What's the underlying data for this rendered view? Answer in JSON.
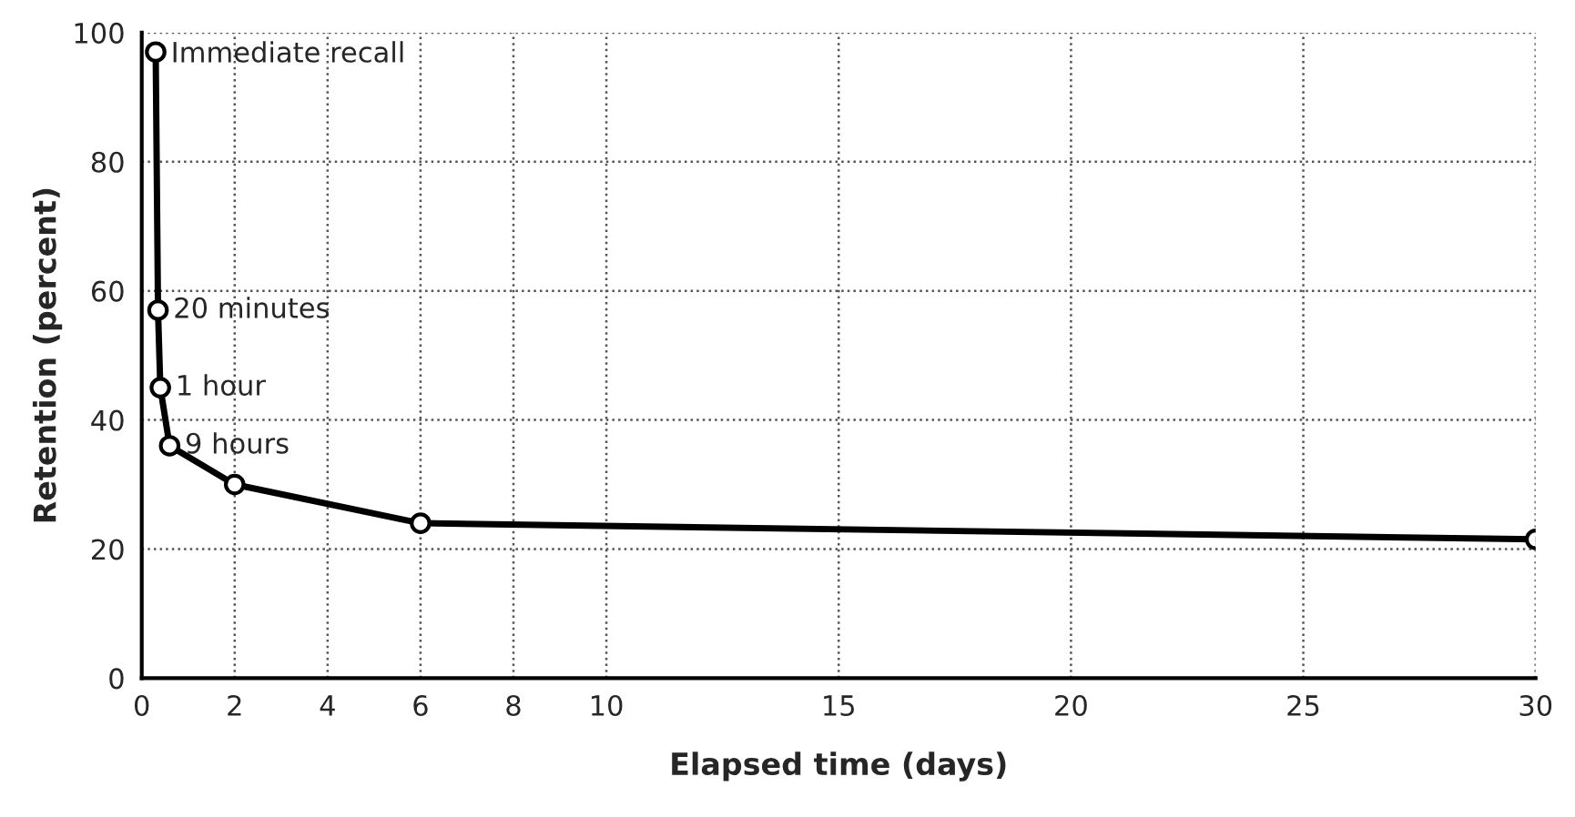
{
  "chart_data": {
    "type": "line",
    "xlabel": "Elapsed time (days)",
    "ylabel": "Retention (percent)",
    "x": [
      0.3,
      0.35,
      0.4,
      0.6,
      2,
      6,
      30
    ],
    "series": [
      {
        "color": "#000000",
        "values": [
          97,
          57,
          45,
          36,
          30,
          24,
          21.5
        ]
      }
    ],
    "xlim": [
      0,
      30
    ],
    "xticks": [
      0,
      2,
      4,
      6,
      8,
      10,
      15,
      20,
      25,
      30
    ],
    "ylim": [
      0,
      100
    ],
    "yticks": [
      0,
      20,
      40,
      60,
      80,
      100
    ],
    "grid": true,
    "marker": "circle",
    "line_style": "solid",
    "annotations": [
      {
        "text": "Immediate recall",
        "x": 0.3,
        "y": 97
      },
      {
        "text": "20 minutes",
        "x": 0.35,
        "y": 57
      },
      {
        "text": "1 hour",
        "x": 0.4,
        "y": 45
      },
      {
        "text": "9 hours",
        "x": 0.6,
        "y": 36
      }
    ]
  }
}
